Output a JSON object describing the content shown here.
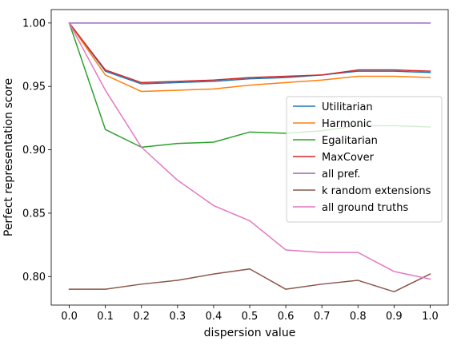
{
  "chart_data": {
    "type": "line",
    "title": "",
    "xlabel": "dispersion value",
    "ylabel": "Perfect representation score",
    "x": [
      0.0,
      0.1,
      0.2,
      0.3,
      0.4,
      0.5,
      0.6,
      0.7,
      0.8,
      0.9,
      1.0
    ],
    "xticks": [
      "0.0",
      "0.1",
      "0.2",
      "0.3",
      "0.4",
      "0.5",
      "0.6",
      "0.7",
      "0.8",
      "0.9",
      "1.0"
    ],
    "yticks": [
      "0.80",
      "0.85",
      "0.90",
      "0.95",
      "1.00"
    ],
    "xlim": [
      -0.05,
      1.05
    ],
    "ylim": [
      0.7775,
      1.0106
    ],
    "grid": false,
    "legend_position": "center-right",
    "series": [
      {
        "name": "Utilitarian",
        "color": "#1f77b4",
        "values": [
          1.0,
          0.962,
          0.952,
          0.953,
          0.954,
          0.956,
          0.957,
          0.959,
          0.962,
          0.962,
          0.961
        ]
      },
      {
        "name": "Harmonic",
        "color": "#ff7f0e",
        "values": [
          1.0,
          0.959,
          0.946,
          0.947,
          0.948,
          0.951,
          0.953,
          0.955,
          0.958,
          0.958,
          0.957
        ]
      },
      {
        "name": "Egalitarian",
        "color": "#2ca02c",
        "values": [
          1.0,
          0.916,
          0.902,
          0.905,
          0.906,
          0.914,
          0.913,
          0.915,
          0.919,
          0.919,
          0.918
        ]
      },
      {
        "name": "MaxCover",
        "color": "#d62728",
        "values": [
          1.0,
          0.963,
          0.953,
          0.954,
          0.955,
          0.957,
          0.958,
          0.959,
          0.963,
          0.963,
          0.962
        ]
      },
      {
        "name": "all pref.",
        "color": "#9467bd",
        "values": [
          1.0,
          1.0,
          1.0,
          1.0,
          1.0,
          1.0,
          1.0,
          1.0,
          1.0,
          1.0,
          1.0
        ]
      },
      {
        "name": "k random extensions",
        "color": "#8c564b",
        "values": [
          0.79,
          0.79,
          0.794,
          0.797,
          0.802,
          0.806,
          0.79,
          0.794,
          0.797,
          0.788,
          0.802
        ]
      },
      {
        "name": "all ground truths",
        "color": "#e377c2",
        "values": [
          1.0,
          0.947,
          0.902,
          0.876,
          0.856,
          0.844,
          0.821,
          0.819,
          0.819,
          0.804,
          0.798
        ]
      }
    ]
  }
}
